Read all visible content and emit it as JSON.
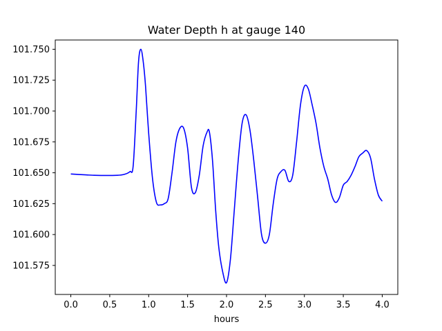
{
  "chart_data": {
    "type": "line",
    "title": "Water Depth h at gauge 140",
    "xlabel": "hours",
    "ylabel": "",
    "xlim": [
      -0.2,
      4.2
    ],
    "ylim": [
      101.5515,
      101.7575
    ],
    "grid": false,
    "x_ticks": [
      0.0,
      0.5,
      1.0,
      1.5,
      2.0,
      2.5,
      3.0,
      3.5,
      4.0
    ],
    "x_tick_labels": [
      "0.0",
      "0.5",
      "1.0",
      "1.5",
      "2.0",
      "2.5",
      "3.0",
      "3.5",
      "4.0"
    ],
    "y_ticks": [
      101.575,
      101.6,
      101.625,
      101.65,
      101.675,
      101.7,
      101.725,
      101.75
    ],
    "y_tick_labels": [
      "101.575",
      "101.600",
      "101.625",
      "101.650",
      "101.675",
      "101.700",
      "101.725",
      "101.750"
    ],
    "series": [
      {
        "color": "#0000ff",
        "x": [
          0.0,
          0.3,
          0.6,
          0.7,
          0.76,
          0.8,
          0.84,
          0.87,
          0.9,
          0.93,
          0.96,
          1.0,
          1.05,
          1.1,
          1.15,
          1.2,
          1.25,
          1.3,
          1.35,
          1.4,
          1.45,
          1.5,
          1.55,
          1.6,
          1.65,
          1.7,
          1.75,
          1.78,
          1.82,
          1.86,
          1.9,
          1.95,
          2.0,
          2.05,
          2.1,
          2.15,
          2.2,
          2.25,
          2.3,
          2.35,
          2.4,
          2.45,
          2.5,
          2.55,
          2.6,
          2.65,
          2.7,
          2.75,
          2.8,
          2.85,
          2.9,
          2.95,
          3.0,
          3.05,
          3.1,
          3.15,
          3.2,
          3.25,
          3.3,
          3.35,
          3.4,
          3.45,
          3.5,
          3.55,
          3.6,
          3.65,
          3.7,
          3.75,
          3.8,
          3.85,
          3.9,
          3.95,
          4.0
        ],
        "y": [
          101.649,
          101.648,
          101.648,
          101.649,
          101.651,
          101.655,
          101.7,
          101.74,
          101.75,
          101.74,
          101.72,
          101.682,
          101.645,
          101.626,
          101.624,
          101.625,
          101.629,
          101.65,
          101.675,
          101.686,
          101.686,
          101.67,
          101.638,
          101.634,
          101.648,
          101.672,
          101.683,
          101.683,
          101.66,
          101.62,
          101.59,
          101.57,
          101.561,
          101.58,
          101.62,
          101.66,
          101.69,
          101.697,
          101.685,
          101.66,
          101.63,
          101.6,
          101.593,
          101.6,
          101.625,
          101.645,
          101.651,
          101.652,
          101.643,
          101.648,
          101.675,
          101.705,
          101.72,
          101.718,
          101.705,
          101.69,
          101.67,
          101.655,
          101.645,
          101.632,
          101.626,
          101.63,
          101.64,
          101.643,
          101.648,
          101.655,
          101.663,
          101.666,
          101.668,
          101.662,
          101.645,
          101.632,
          101.627
        ]
      }
    ]
  }
}
